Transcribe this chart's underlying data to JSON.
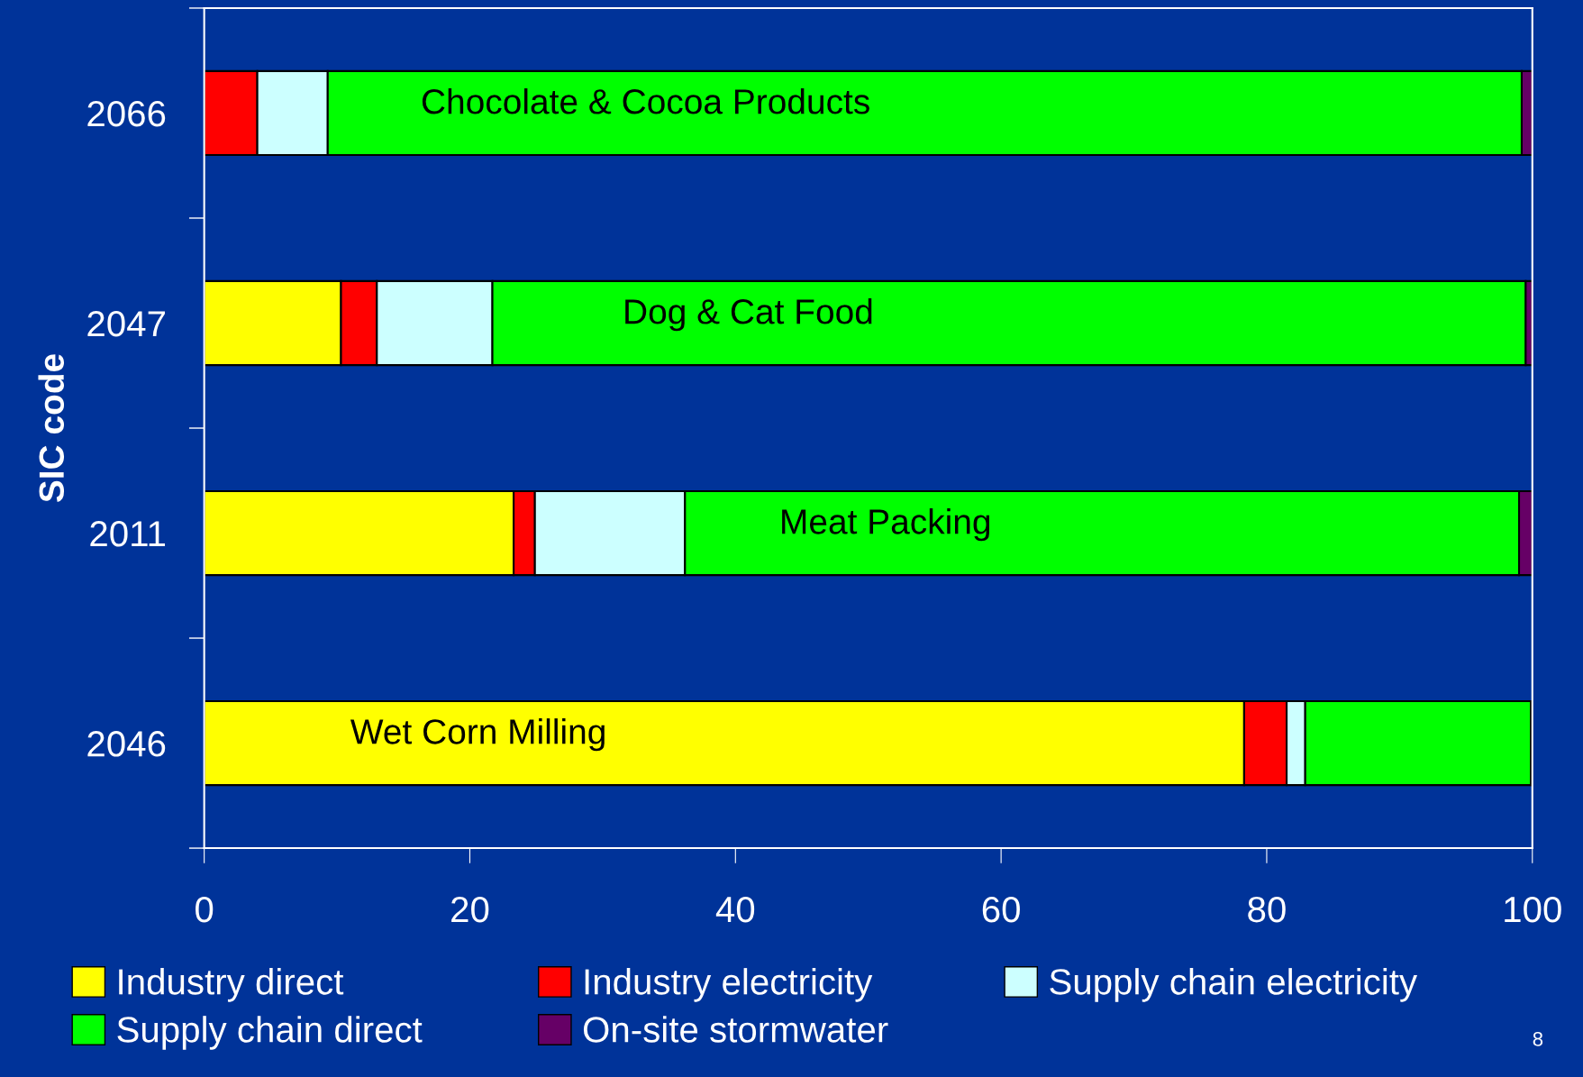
{
  "chart_data": {
    "type": "bar",
    "orientation": "horizontal",
    "stacked": true,
    "ylabel": "SIC code",
    "categories": [
      "2066",
      "2047",
      "2011",
      "2046"
    ],
    "series": [
      {
        "name": "Industry direct",
        "color": "#ffff00",
        "values": [
          0,
          10.3,
          23.3,
          78.3
        ]
      },
      {
        "name": "Industry electricity",
        "color": "#ff0000",
        "values": [
          4.0,
          2.7,
          1.6,
          3.2
        ]
      },
      {
        "name": "Supply chain electricity",
        "color": "#ccffff",
        "values": [
          5.3,
          8.7,
          11.3,
          1.4
        ]
      },
      {
        "name": "Supply chain direct",
        "color": "#00ff00",
        "values": [
          89.9,
          77.8,
          62.8,
          17.0
        ]
      },
      {
        "name": "On-site stormwater",
        "color": "#660066",
        "values": [
          0.8,
          0.5,
          1.0,
          0.1
        ]
      }
    ],
    "xlim": [
      0,
      100
    ],
    "xticks": [
      0,
      20,
      40,
      60,
      80,
      100
    ],
    "grid": false,
    "legend": "bottom",
    "annotations": [
      "Chocolate & Cocoa Products",
      "Dog & Cat Food",
      "Meat Packing",
      "Wet Corn Milling",
      "8"
    ]
  }
}
